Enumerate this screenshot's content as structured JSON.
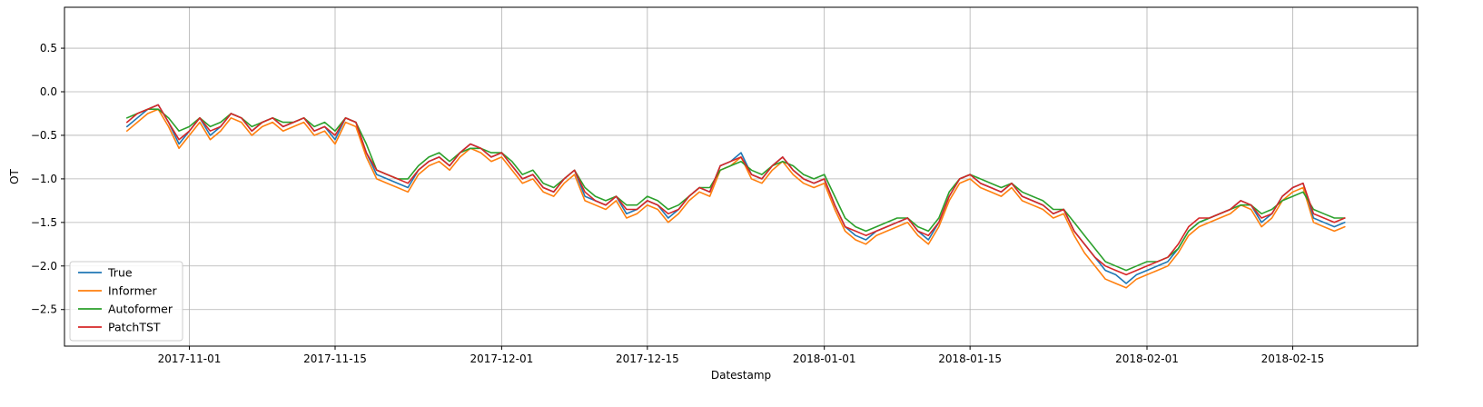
{
  "chart_data": {
    "type": "line",
    "xlabel": "Datestamp",
    "ylabel": "OT",
    "x_range": [
      "2017-10-20",
      "2018-02-27"
    ],
    "ylim": [
      -2.92,
      0.97
    ],
    "x_ticks": [
      "2017-11-01",
      "2017-11-15",
      "2017-12-01",
      "2017-12-15",
      "2018-01-01",
      "2018-01-15",
      "2018-02-01",
      "2018-02-15"
    ],
    "y_ticks": [
      0.5,
      0.0,
      -0.5,
      -1.0,
      -1.5,
      -2.0,
      -2.5
    ],
    "y_tick_labels": [
      "0.5",
      "0.0",
      "−0.5",
      "−1.0",
      "−1.5",
      "−2.0",
      "−2.5"
    ],
    "grid": true,
    "legend_position": "bottom-left",
    "x_start": "2017-10-26",
    "x_step_days": 1,
    "series": [
      {
        "name": "True",
        "color": "#1f77b4",
        "values": [
          -0.4,
          -0.3,
          -0.2,
          -0.15,
          -0.35,
          -0.6,
          -0.45,
          -0.3,
          -0.5,
          -0.4,
          -0.25,
          -0.3,
          -0.45,
          -0.35,
          -0.3,
          -0.4,
          -0.35,
          -0.3,
          -0.45,
          -0.4,
          -0.55,
          -0.3,
          -0.35,
          -0.7,
          -0.95,
          -1.0,
          -1.05,
          -1.1,
          -0.9,
          -0.8,
          -0.75,
          -0.85,
          -0.7,
          -0.6,
          -0.65,
          -0.75,
          -0.7,
          -0.85,
          -1.0,
          -0.95,
          -1.1,
          -1.15,
          -1.0,
          -0.9,
          -1.2,
          -1.25,
          -1.3,
          -1.2,
          -1.4,
          -1.35,
          -1.25,
          -1.3,
          -1.45,
          -1.35,
          -1.2,
          -1.1,
          -1.15,
          -0.85,
          -0.8,
          -0.7,
          -0.95,
          -1.0,
          -0.85,
          -0.75,
          -0.9,
          -1.0,
          -1.05,
          -1.0,
          -1.3,
          -1.55,
          -1.65,
          -1.7,
          -1.6,
          -1.55,
          -1.5,
          -1.45,
          -1.6,
          -1.7,
          -1.5,
          -1.2,
          -1.0,
          -0.95,
          -1.05,
          -1.1,
          -1.15,
          -1.05,
          -1.2,
          -1.25,
          -1.3,
          -1.4,
          -1.35,
          -1.6,
          -1.75,
          -1.9,
          -2.05,
          -2.1,
          -2.2,
          -2.1,
          -2.05,
          -2.0,
          -1.95,
          -1.8,
          -1.6,
          -1.5,
          -1.45,
          -1.4,
          -1.35,
          -1.25,
          -1.3,
          -1.5,
          -1.4,
          -1.2,
          -1.1,
          -1.05,
          -1.45,
          -1.5,
          -1.55,
          -1.5
        ]
      },
      {
        "name": "Informer",
        "color": "#ff7f0e",
        "values": [
          -0.45,
          -0.35,
          -0.25,
          -0.2,
          -0.4,
          -0.65,
          -0.5,
          -0.35,
          -0.55,
          -0.45,
          -0.3,
          -0.35,
          -0.5,
          -0.4,
          -0.35,
          -0.45,
          -0.4,
          -0.35,
          -0.5,
          -0.45,
          -0.6,
          -0.35,
          -0.4,
          -0.75,
          -1.0,
          -1.05,
          -1.1,
          -1.15,
          -0.95,
          -0.85,
          -0.8,
          -0.9,
          -0.75,
          -0.65,
          -0.7,
          -0.8,
          -0.75,
          -0.9,
          -1.05,
          -1.0,
          -1.15,
          -1.2,
          -1.05,
          -0.95,
          -1.25,
          -1.3,
          -1.35,
          -1.25,
          -1.45,
          -1.4,
          -1.3,
          -1.35,
          -1.5,
          -1.4,
          -1.25,
          -1.15,
          -1.2,
          -0.9,
          -0.85,
          -0.75,
          -1.0,
          -1.05,
          -0.9,
          -0.8,
          -0.95,
          -1.05,
          -1.1,
          -1.05,
          -1.35,
          -1.6,
          -1.7,
          -1.75,
          -1.65,
          -1.6,
          -1.55,
          -1.5,
          -1.65,
          -1.75,
          -1.55,
          -1.25,
          -1.05,
          -1.0,
          -1.1,
          -1.15,
          -1.2,
          -1.1,
          -1.25,
          -1.3,
          -1.35,
          -1.45,
          -1.4,
          -1.65,
          -1.85,
          -2.0,
          -2.15,
          -2.2,
          -2.25,
          -2.15,
          -2.1,
          -2.05,
          -2.0,
          -1.85,
          -1.65,
          -1.55,
          -1.5,
          -1.45,
          -1.4,
          -1.3,
          -1.35,
          -1.55,
          -1.45,
          -1.25,
          -1.15,
          -1.1,
          -1.5,
          -1.55,
          -1.6,
          -1.55
        ]
      },
      {
        "name": "Autoformer",
        "color": "#2ca02c",
        "values": [
          -0.3,
          -0.25,
          -0.2,
          -0.2,
          -0.3,
          -0.45,
          -0.4,
          -0.3,
          -0.4,
          -0.35,
          -0.25,
          -0.3,
          -0.4,
          -0.35,
          -0.3,
          -0.35,
          -0.35,
          -0.3,
          -0.4,
          -0.35,
          -0.45,
          -0.3,
          -0.35,
          -0.6,
          -0.9,
          -0.95,
          -1.0,
          -1.0,
          -0.85,
          -0.75,
          -0.7,
          -0.8,
          -0.7,
          -0.65,
          -0.65,
          -0.7,
          -0.7,
          -0.8,
          -0.95,
          -0.9,
          -1.05,
          -1.1,
          -1.0,
          -0.9,
          -1.1,
          -1.2,
          -1.25,
          -1.2,
          -1.3,
          -1.3,
          -1.2,
          -1.25,
          -1.35,
          -1.3,
          -1.2,
          -1.1,
          -1.1,
          -0.9,
          -0.85,
          -0.8,
          -0.9,
          -0.95,
          -0.85,
          -0.8,
          -0.85,
          -0.95,
          -1.0,
          -0.95,
          -1.2,
          -1.45,
          -1.55,
          -1.6,
          -1.55,
          -1.5,
          -1.45,
          -1.45,
          -1.55,
          -1.6,
          -1.45,
          -1.15,
          -1.0,
          -0.95,
          -1.0,
          -1.05,
          -1.1,
          -1.05,
          -1.15,
          -1.2,
          -1.25,
          -1.35,
          -1.35,
          -1.5,
          -1.65,
          -1.8,
          -1.95,
          -2.0,
          -2.05,
          -2.0,
          -1.95,
          -1.95,
          -1.9,
          -1.8,
          -1.6,
          -1.5,
          -1.45,
          -1.4,
          -1.35,
          -1.3,
          -1.3,
          -1.4,
          -1.35,
          -1.25,
          -1.2,
          -1.15,
          -1.35,
          -1.4,
          -1.45,
          -1.45
        ]
      },
      {
        "name": "PatchTST",
        "color": "#d62728",
        "values": [
          -0.35,
          -0.25,
          -0.2,
          -0.15,
          -0.35,
          -0.55,
          -0.45,
          -0.3,
          -0.45,
          -0.4,
          -0.25,
          -0.3,
          -0.45,
          -0.35,
          -0.3,
          -0.4,
          -0.35,
          -0.3,
          -0.45,
          -0.4,
          -0.5,
          -0.3,
          -0.35,
          -0.7,
          -0.9,
          -0.95,
          -1.0,
          -1.05,
          -0.9,
          -0.8,
          -0.75,
          -0.85,
          -0.7,
          -0.6,
          -0.65,
          -0.75,
          -0.7,
          -0.85,
          -1.0,
          -0.95,
          -1.1,
          -1.15,
          -1.0,
          -0.9,
          -1.15,
          -1.25,
          -1.3,
          -1.2,
          -1.35,
          -1.35,
          -1.25,
          -1.3,
          -1.4,
          -1.35,
          -1.2,
          -1.1,
          -1.15,
          -0.85,
          -0.8,
          -0.75,
          -0.95,
          -1.0,
          -0.85,
          -0.75,
          -0.9,
          -1.0,
          -1.05,
          -1.0,
          -1.3,
          -1.55,
          -1.6,
          -1.65,
          -1.6,
          -1.55,
          -1.5,
          -1.45,
          -1.6,
          -1.65,
          -1.5,
          -1.2,
          -1.0,
          -0.95,
          -1.05,
          -1.1,
          -1.15,
          -1.05,
          -1.2,
          -1.25,
          -1.3,
          -1.4,
          -1.35,
          -1.6,
          -1.75,
          -1.9,
          -2.0,
          -2.05,
          -2.1,
          -2.05,
          -2.0,
          -1.95,
          -1.9,
          -1.75,
          -1.55,
          -1.45,
          -1.45,
          -1.4,
          -1.35,
          -1.25,
          -1.3,
          -1.45,
          -1.4,
          -1.2,
          -1.1,
          -1.05,
          -1.4,
          -1.45,
          -1.5,
          -1.45
        ]
      }
    ]
  }
}
